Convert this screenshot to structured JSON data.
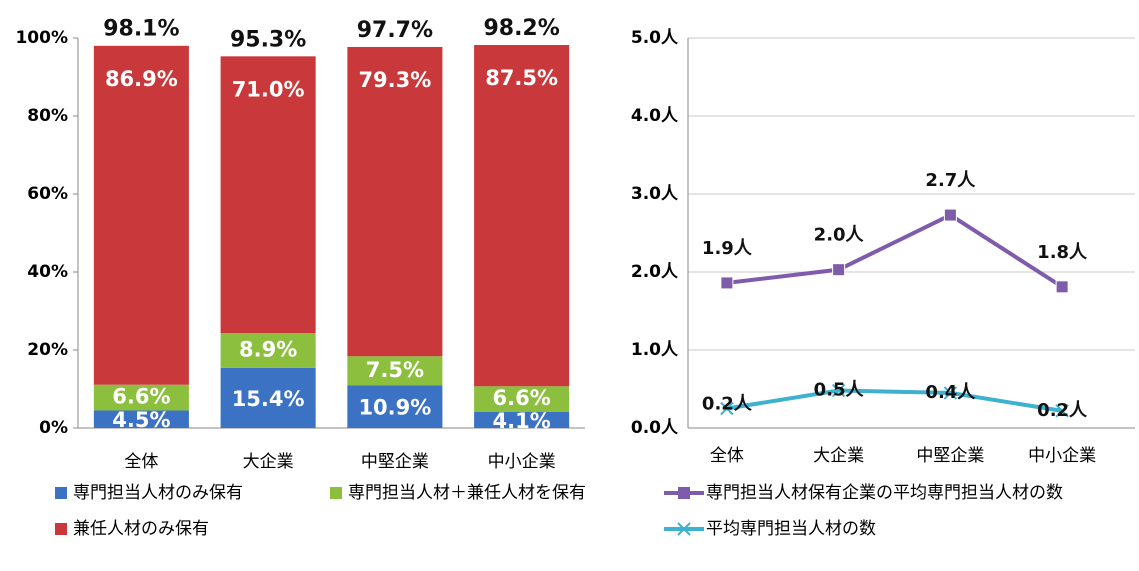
{
  "chart_data": [
    {
      "type": "stacked-bar",
      "categories": [
        "全体",
        "大企業",
        "中堅企業",
        "中小企業"
      ],
      "series": [
        {
          "name": "専門担当人材のみ保有",
          "color": "#3b72c4",
          "values": [
            4.5,
            15.4,
            10.9,
            4.1
          ],
          "value_labels": [
            "4.5%",
            "15.4%",
            "10.9%",
            "4.1%"
          ]
        },
        {
          "name": "専門担当人材＋兼任人材を保有",
          "color": "#8dbf3e",
          "values": [
            6.6,
            8.9,
            7.5,
            6.6
          ],
          "value_labels": [
            "6.6%",
            "8.9%",
            "7.5%",
            "6.6%"
          ]
        },
        {
          "name": "兼任人材のみ保有",
          "color": "#c9393b",
          "values": [
            86.9,
            71.0,
            79.3,
            87.5
          ],
          "value_labels": [
            "86.9%",
            "71.0%",
            "79.3%",
            "87.5%"
          ]
        }
      ],
      "totals": [
        98.1,
        95.3,
        97.7,
        98.2
      ],
      "total_labels": [
        "98.1%",
        "95.3%",
        "97.7%",
        "98.2%"
      ],
      "ylim": [
        0,
        100
      ],
      "yticks": [
        {
          "value": 0,
          "label": "0%"
        },
        {
          "value": 20,
          "label": "20%"
        },
        {
          "value": 40,
          "label": "40%"
        },
        {
          "value": 60,
          "label": "60%"
        },
        {
          "value": 80,
          "label": "80%"
        },
        {
          "value": 100,
          "label": "100%"
        }
      ],
      "grid": false
    },
    {
      "type": "line",
      "categories": [
        "全体",
        "大企業",
        "中堅企業",
        "中小企業"
      ],
      "series": [
        {
          "name": "専門担当人材保有企業の平均専門担当人材の数",
          "color": "#7f5bab",
          "marker": "square",
          "values": [
            1.86,
            2.03,
            2.73,
            1.81
          ],
          "value_labels": [
            "1.9人",
            "2.0人",
            "2.7人",
            "1.8人"
          ]
        },
        {
          "name": "平均専門担当人材の数",
          "color": "#3eb1d0",
          "marker": "x",
          "values": [
            0.25,
            0.48,
            0.45,
            0.22
          ],
          "value_labels": [
            "0.2人",
            "0.5人",
            "0.4人",
            "0.2人"
          ]
        }
      ],
      "ylim": [
        0,
        5
      ],
      "yticks": [
        {
          "value": 0,
          "label": "0.0人"
        },
        {
          "value": 1,
          "label": "1.0人"
        },
        {
          "value": 2,
          "label": "2.0人"
        },
        {
          "value": 3,
          "label": "3.0人"
        },
        {
          "value": 4,
          "label": "4.0人"
        },
        {
          "value": 5,
          "label": "5.0人"
        }
      ],
      "grid": true
    }
  ]
}
